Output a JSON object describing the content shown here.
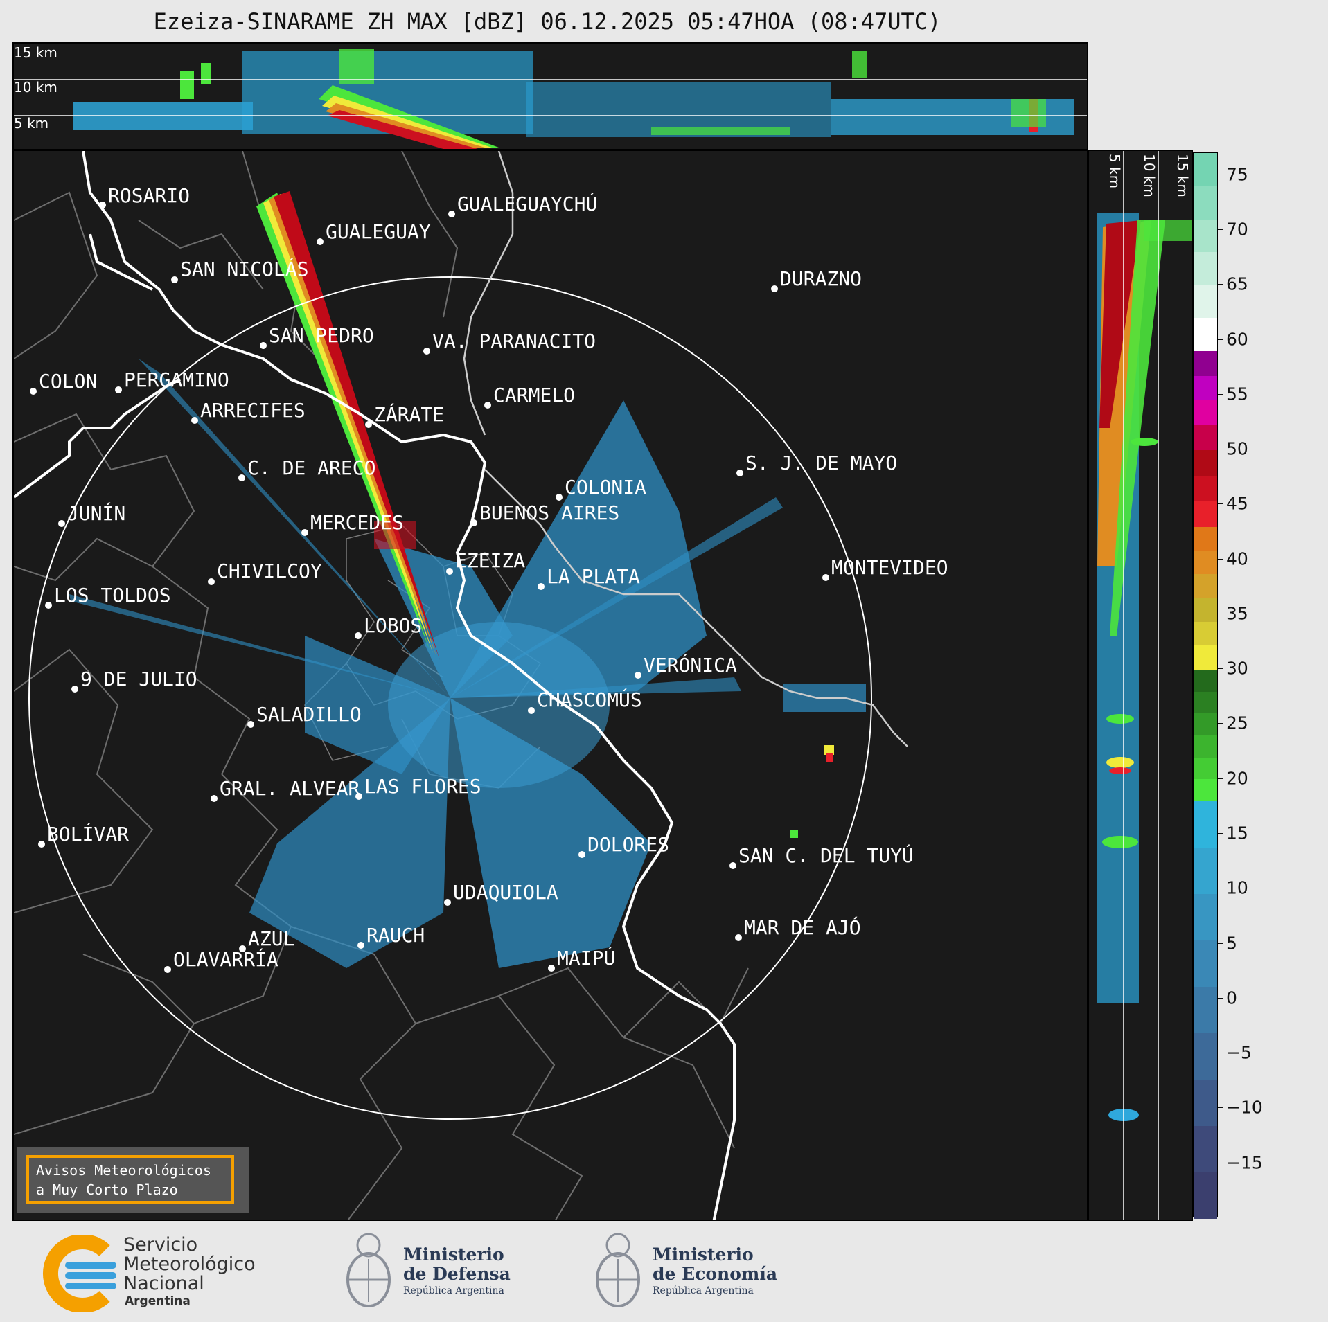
{
  "title": "Ezeiza-SINARAME ZH MAX [dBZ] 06.12.2025 05:47HOA (08:47UTC)",
  "top_xsec": {
    "height_labels": [
      "15 km",
      "10 km",
      "5 km"
    ]
  },
  "right_xsec": {
    "height_labels": [
      "5 km",
      "10 km",
      "15 km"
    ]
  },
  "colorbar": {
    "unit": "dBZ",
    "ticks": [
      "75",
      "70",
      "65",
      "60",
      "55",
      "50",
      "45",
      "40",
      "35",
      "30",
      "25",
      "20",
      "15",
      "10",
      "5",
      "0",
      "−5",
      "−10",
      "−15"
    ],
    "tick_values": [
      75,
      70,
      65,
      60,
      55,
      50,
      45,
      40,
      35,
      30,
      25,
      20,
      15,
      10,
      5,
      0,
      -5,
      -10,
      -15
    ],
    "range": [
      -20,
      77
    ],
    "bands": [
      {
        "from": -20,
        "to": 18,
        "colors": [
          "#3b3f6e",
          "#3e4a7a",
          "#3e5a8a",
          "#3d6a99",
          "#3b7aa8",
          "#3a88b6",
          "#3896c2",
          "#35a5cf",
          "#2fb4dc"
        ]
      },
      {
        "from": 18,
        "to": 30,
        "colors": [
          "#4ce63c",
          "#44cc34",
          "#3cb42e",
          "#339a28",
          "#2b8022",
          "#236a1c"
        ]
      },
      {
        "from": 30,
        "to": 43,
        "colors": [
          "#f0ea3a",
          "#d8cc34",
          "#c4b42e",
          "#d4a22a",
          "#e08c22",
          "#e07818"
        ]
      },
      {
        "from": 43,
        "to": 50,
        "colors": [
          "#e8202a",
          "#cc1020",
          "#b00a16"
        ]
      },
      {
        "from": 50,
        "to": 59,
        "colors": [
          "#c8004a",
          "#e000a0",
          "#c000c0",
          "#900090"
        ]
      },
      {
        "from": 59,
        "to": 77,
        "colors": [
          "#ffffff",
          "#e0f4ea",
          "#c4ecda",
          "#a8e4ca",
          "#8cdcbe",
          "#74d4b2"
        ]
      }
    ]
  },
  "map": {
    "radar_site": "EZEIZA",
    "cities": [
      {
        "name": "ROSARIO"
      },
      {
        "name": "GUALEGUAYCHÚ"
      },
      {
        "name": "GUALEGUAY"
      },
      {
        "name": "SAN NICOLÁS"
      },
      {
        "name": "DURAZNO"
      },
      {
        "name": "SAN PEDRO"
      },
      {
        "name": "VA. PARANACITO"
      },
      {
        "name": "COLON"
      },
      {
        "name": "PERGAMINO"
      },
      {
        "name": "CARMELO"
      },
      {
        "name": "ARRECIFES"
      },
      {
        "name": "ZÁRATE"
      },
      {
        "name": "S. J. DE MAYO"
      },
      {
        "name": "C. DE ARECO"
      },
      {
        "name": "COLONIA"
      },
      {
        "name": "JUNÍN"
      },
      {
        "name": "BUENOS AIRES"
      },
      {
        "name": "MERCEDES"
      },
      {
        "name": "EZEIZA"
      },
      {
        "name": "MONTEVIDEO"
      },
      {
        "name": "CHIVILCOY"
      },
      {
        "name": "LA PLATA"
      },
      {
        "name": "LOS TOLDOS"
      },
      {
        "name": "LOBOS"
      },
      {
        "name": "VERÓNICA"
      },
      {
        "name": "9 DE JULIO"
      },
      {
        "name": "CHASCOMÚS"
      },
      {
        "name": "SALADILLO"
      },
      {
        "name": "GRAL. ALVEAR"
      },
      {
        "name": "LAS FLORES"
      },
      {
        "name": "BOLÍVAR"
      },
      {
        "name": "DOLORES"
      },
      {
        "name": "SAN C. DEL TUYÚ"
      },
      {
        "name": "UDAQUIOLA"
      },
      {
        "name": "MAR DE AJÓ"
      },
      {
        "name": "AZUL"
      },
      {
        "name": "RAUCH"
      },
      {
        "name": "MAIPÚ"
      },
      {
        "name": "OLAVARRÍA"
      }
    ]
  },
  "aviso": {
    "line1": "Avisos Meteorológicos",
    "line2": "a Muy Corto Plazo"
  },
  "footer": {
    "smn": {
      "line1": "Servicio",
      "line2": "Meteorológico",
      "line3": "Nacional",
      "line4": "Argentina"
    },
    "defensa": {
      "line1": "Ministerio",
      "line2": "de Defensa",
      "line3": "República Argentina"
    },
    "economia": {
      "line1": "Ministerio",
      "line2": "de Economía",
      "line3": "República Argentina"
    }
  }
}
